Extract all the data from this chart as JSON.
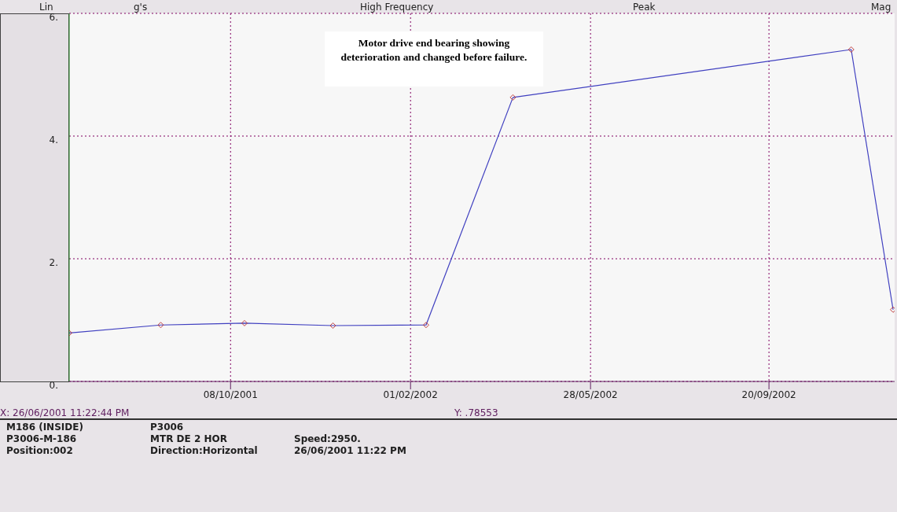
{
  "chart_data": {
    "type": "line",
    "ylabel": "g's",
    "annotations": [
      "Lin",
      "High Frequency",
      "Peak",
      "Mag",
      "Motor drive end bearing showing deterioration and changed before failure.",
      "X: 26/06/2001 11:22:44 PM",
      "Y: .78553",
      "M186 (INSIDE)",
      "P3006-M-186",
      "Position:002",
      "P3006",
      "MTR DE 2 HOR",
      "Direction:Horizontal",
      "Speed:2950.",
      "26/06/2001 11:22 PM"
    ],
    "x": [
      "2001-06-26",
      "2001-08-24",
      "2001-10-17",
      "2001-12-13",
      "2002-02-11",
      "2002-04-08",
      "2002-11-12",
      "2002-12-09"
    ],
    "series": [
      {
        "color": "#4040c0",
        "values": [
          0.79,
          0.92,
          0.95,
          0.91,
          0.92,
          4.63,
          5.41,
          1.17
        ]
      }
    ],
    "xlim": [
      "2001-06-26",
      "2002-12-10"
    ],
    "xticks": [
      {
        "value": "2001-10-08",
        "label": "08/10/2001"
      },
      {
        "value": "2002-02-01",
        "label": "01/02/2002"
      },
      {
        "value": "2002-05-28",
        "label": "28/05/2002"
      },
      {
        "value": "2002-09-20",
        "label": "20/09/2002"
      }
    ],
    "ylim": [
      0,
      6
    ],
    "yticks": [
      {
        "value": 0,
        "label": "0."
      },
      {
        "value": 2,
        "label": "2."
      },
      {
        "value": 4,
        "label": "4."
      },
      {
        "value": 6,
        "label": "6."
      }
    ],
    "grid": true,
    "marker": "diamond",
    "line_style": "solid",
    "legend": false
  }
}
